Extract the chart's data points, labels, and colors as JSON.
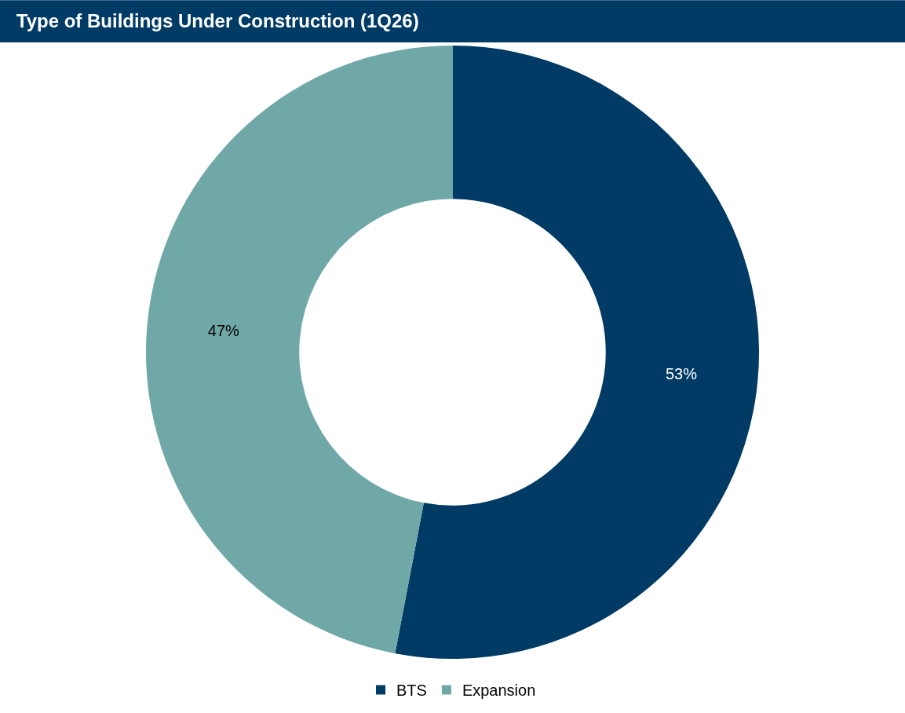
{
  "chart_data": {
    "type": "donut",
    "title": "Type of Buildings Under Construction (1Q26)",
    "categories": [
      "BTS",
      "Expansion"
    ],
    "values": [
      53,
      47
    ],
    "colors": [
      "#003b66",
      "#70a8a8"
    ],
    "value_labels": [
      "53%",
      "47%"
    ],
    "legend": "bottom"
  }
}
